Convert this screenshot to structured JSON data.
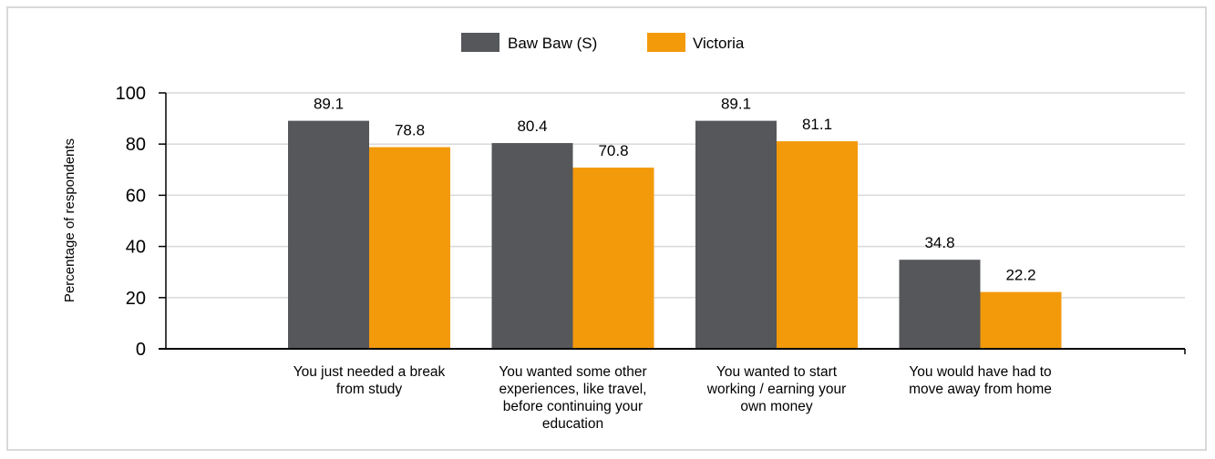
{
  "chart_data": {
    "type": "bar",
    "categories": [
      [
        "You just needed a break",
        "from study"
      ],
      [
        "You wanted some other",
        "experiences, like travel,",
        "before continuing your",
        "education"
      ],
      [
        "You wanted to start",
        "working / earning your",
        "own money"
      ],
      [
        "You would have had to",
        "move away from home"
      ]
    ],
    "series": [
      {
        "name": "Baw Baw (S)",
        "values": [
          89.1,
          80.4,
          89.1,
          34.8
        ],
        "color": "#55575a"
      },
      {
        "name": "Victoria",
        "values": [
          78.8,
          70.8,
          81.1,
          22.2
        ],
        "color": "#f39a0b"
      }
    ],
    "value_labels": [
      [
        "89.1",
        "80.4",
        "89.1",
        "34.8"
      ],
      [
        "78.8",
        "70.8",
        "81.1",
        "22.2"
      ]
    ],
    "ylabel": "Percentage of respondents",
    "ylim": [
      0,
      100
    ],
    "yticks": [
      0,
      20,
      40,
      60,
      80,
      100
    ],
    "ytick_labels": [
      "0",
      "20",
      "40",
      "60",
      "80",
      "100"
    ],
    "grid": true,
    "legend_position": "top-center"
  }
}
